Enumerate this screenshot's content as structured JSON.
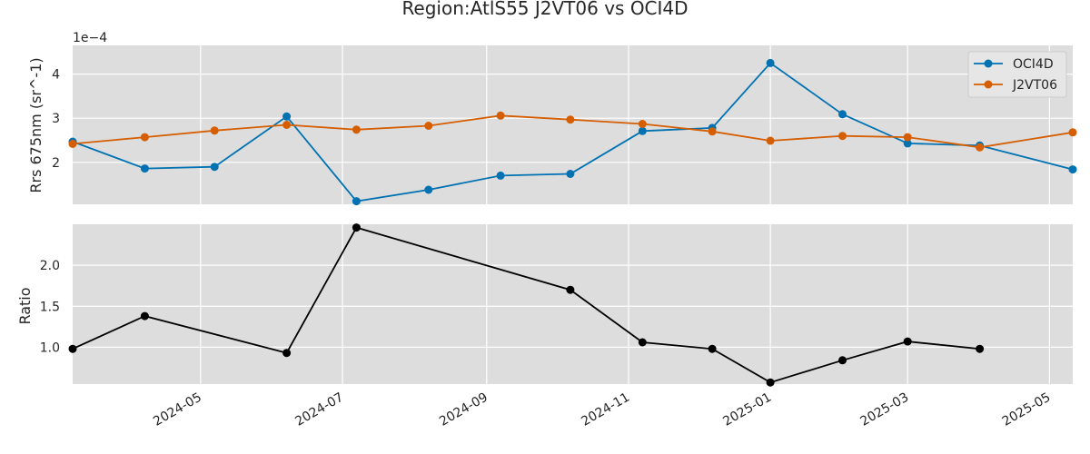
{
  "chart_data": {
    "title": "Region:AtlS55 J2VT06 vs OCI4D",
    "x_ticks": [
      "2024-05",
      "2024-07",
      "2024-09",
      "2024-11",
      "2025-01",
      "2025-03",
      "2025-05"
    ],
    "xlim": [
      "2024-03-07",
      "2025-05-11"
    ],
    "panels": [
      {
        "type": "line",
        "ylabel": "Rrs 675nm (sr^-1)",
        "scale_label": "1e−4",
        "y_ticks": [
          2,
          3,
          4
        ],
        "ylim": [
          1.05,
          4.65
        ],
        "legend_position": "top-right",
        "series": [
          {
            "name": "OCI4D",
            "color": "#0072b2",
            "points": [
              [
                "2024-03-07",
                2.47
              ],
              [
                "2024-04-07",
                1.86
              ],
              [
                "2024-05-07",
                1.9
              ],
              [
                "2024-06-07",
                3.04
              ],
              [
                "2024-07-07",
                1.12
              ],
              [
                "2024-08-07",
                1.38
              ],
              [
                "2024-09-07",
                1.7
              ],
              [
                "2024-10-07",
                1.74
              ],
              [
                "2024-11-07",
                2.71
              ],
              [
                "2024-12-07",
                2.78
              ],
              [
                "2025-01-01",
                4.25
              ],
              [
                "2025-02-01",
                3.09
              ],
              [
                "2025-03-01",
                2.43
              ],
              [
                "2025-04-01",
                2.38
              ],
              [
                "2025-05-11",
                1.84
              ]
            ]
          },
          {
            "name": "J2VT06",
            "color": "#d55e00",
            "points": [
              [
                "2024-03-07",
                2.42
              ],
              [
                "2024-04-07",
                2.57
              ],
              [
                "2024-05-07",
                2.72
              ],
              [
                "2024-06-07",
                2.85
              ],
              [
                "2024-07-07",
                2.74
              ],
              [
                "2024-08-07",
                2.83
              ],
              [
                "2024-09-07",
                3.06
              ],
              [
                "2024-10-07",
                2.97
              ],
              [
                "2024-11-07",
                2.87
              ],
              [
                "2024-12-07",
                2.7
              ],
              [
                "2025-01-01",
                2.49
              ],
              [
                "2025-02-01",
                2.6
              ],
              [
                "2025-03-01",
                2.57
              ],
              [
                "2025-04-01",
                2.34
              ],
              [
                "2025-05-11",
                2.68
              ]
            ]
          }
        ]
      },
      {
        "type": "line",
        "ylabel": "Ratio",
        "y_ticks": [
          1.0,
          1.5,
          2.0
        ],
        "y_tick_labels": [
          "1.0",
          "1.5",
          "2.0"
        ],
        "ylim": [
          0.55,
          2.5
        ],
        "series": [
          {
            "name": "",
            "color": "#000000",
            "points": [
              [
                "2024-03-07",
                0.98
              ],
              [
                "2024-04-07",
                1.38
              ],
              [
                "2024-06-07",
                0.93
              ],
              [
                "2024-07-07",
                2.46
              ],
              [
                "2024-10-07",
                1.7
              ],
              [
                "2024-11-07",
                1.06
              ],
              [
                "2024-12-07",
                0.98
              ],
              [
                "2025-01-01",
                0.57
              ],
              [
                "2025-02-01",
                0.84
              ],
              [
                "2025-03-01",
                1.07
              ],
              [
                "2025-04-01",
                0.98
              ]
            ]
          }
        ]
      }
    ]
  }
}
